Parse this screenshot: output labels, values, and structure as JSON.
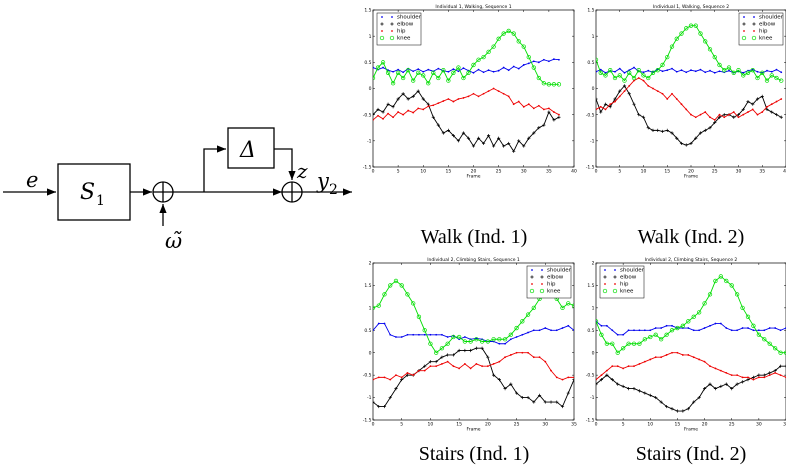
{
  "diagram": {
    "input_label": "e",
    "block1_label": "S",
    "block1_sub": "1",
    "block2_label": "Δ",
    "noise_label": "ω̃",
    "z_label": "z",
    "output_label": "y",
    "output_sub": "2"
  },
  "captions": [
    "Walk (Ind. 1)",
    "Walk (Ind. 2)",
    "Stairs (Ind. 1)",
    "Stairs (Ind. 2)"
  ],
  "colors": {
    "shoulder": "#0000ee",
    "elbow": "#000000",
    "hip": "#ee0000",
    "knee": "#00dd00"
  },
  "chart_data": [
    {
      "type": "line",
      "title": "Individual 1, Walking, Sequence 1",
      "xlabel": "Frame",
      "ylabel": "",
      "xlim": [
        0,
        40
      ],
      "ylim": [
        -1.5,
        1.5
      ],
      "xticks": [
        0,
        5,
        10,
        15,
        20,
        25,
        30,
        35,
        40
      ],
      "yticks": [
        -1.5,
        -1,
        -0.5,
        0,
        0.5,
        1,
        1.5
      ],
      "legend": "top-left",
      "x": [
        0,
        1,
        2,
        3,
        4,
        5,
        6,
        7,
        8,
        9,
        10,
        11,
        12,
        13,
        14,
        15,
        16,
        17,
        18,
        19,
        20,
        21,
        22,
        23,
        24,
        25,
        26,
        27,
        28,
        29,
        30,
        31,
        32,
        33,
        34,
        35,
        36,
        37
      ],
      "series": [
        {
          "name": "shoulder",
          "values": [
            0.4,
            0.36,
            0.4,
            0.35,
            0.32,
            0.36,
            0.31,
            0.38,
            0.33,
            0.37,
            0.32,
            0.36,
            0.33,
            0.38,
            0.34,
            0.32,
            0.37,
            0.33,
            0.39,
            0.34,
            0.3,
            0.36,
            0.31,
            0.35,
            0.32,
            0.34,
            0.4,
            0.35,
            0.42,
            0.38,
            0.45,
            0.48,
            0.52,
            0.5,
            0.55,
            0.52,
            0.56,
            0.55
          ]
        },
        {
          "name": "elbow",
          "values": [
            -0.5,
            -0.4,
            -0.45,
            -0.3,
            -0.35,
            -0.2,
            -0.1,
            -0.2,
            -0.15,
            -0.05,
            -0.2,
            -0.3,
            -0.55,
            -0.7,
            -0.85,
            -0.8,
            -0.9,
            -1.0,
            -0.85,
            -0.95,
            -1.1,
            -0.95,
            -1.05,
            -0.9,
            -1.1,
            -0.95,
            -1.1,
            -1.05,
            -1.2,
            -1.0,
            -1.1,
            -0.95,
            -0.85,
            -0.75,
            -0.7,
            -0.45,
            -0.6,
            -0.55
          ]
        },
        {
          "name": "hip",
          "values": [
            -0.6,
            -0.52,
            -0.58,
            -0.48,
            -0.55,
            -0.45,
            -0.5,
            -0.42,
            -0.46,
            -0.38,
            -0.4,
            -0.34,
            -0.32,
            -0.28,
            -0.24,
            -0.2,
            -0.25,
            -0.2,
            -0.18,
            -0.15,
            -0.1,
            -0.15,
            -0.1,
            -0.05,
            0.0,
            -0.05,
            -0.1,
            -0.15,
            -0.3,
            -0.25,
            -0.35,
            -0.3,
            -0.38,
            -0.33,
            -0.4,
            -0.38,
            -0.45,
            -0.5
          ]
        },
        {
          "name": "knee",
          "values": [
            0.2,
            0.4,
            0.5,
            0.3,
            0.1,
            0.3,
            0.2,
            0.35,
            0.15,
            0.3,
            0.25,
            0.1,
            0.3,
            0.2,
            0.35,
            0.15,
            0.3,
            0.4,
            0.2,
            0.3,
            0.45,
            0.55,
            0.6,
            0.7,
            0.8,
            0.95,
            1.05,
            1.1,
            1.05,
            0.9,
            0.8,
            0.6,
            0.4,
            0.2,
            0.1,
            0.08,
            0.08,
            0.08
          ]
        }
      ]
    },
    {
      "type": "line",
      "title": "Individual 1, Walking, Sequence 2",
      "xlabel": "Frame",
      "ylabel": "",
      "xlim": [
        0,
        40
      ],
      "ylim": [
        -1.5,
        1.5
      ],
      "xticks": [
        0,
        5,
        10,
        15,
        20,
        25,
        30,
        35,
        40
      ],
      "yticks": [
        -1.5,
        -1,
        -0.5,
        0,
        0.5,
        1,
        1.5
      ],
      "legend": "top-right",
      "x": [
        0,
        1,
        2,
        3,
        4,
        5,
        6,
        7,
        8,
        9,
        10,
        11,
        12,
        13,
        14,
        15,
        16,
        17,
        18,
        19,
        20,
        21,
        22,
        23,
        24,
        25,
        26,
        27,
        28,
        29,
        30,
        31,
        32,
        33,
        34,
        35,
        36,
        37,
        38,
        39
      ],
      "series": [
        {
          "name": "shoulder",
          "values": [
            0.32,
            0.36,
            0.3,
            0.34,
            0.32,
            0.38,
            0.3,
            0.35,
            0.4,
            0.33,
            0.31,
            0.34,
            0.31,
            0.37,
            0.33,
            0.35,
            0.38,
            0.32,
            0.35,
            0.31,
            0.35,
            0.33,
            0.36,
            0.31,
            0.34,
            0.3,
            0.33,
            0.31,
            0.34,
            0.3,
            0.33,
            0.3,
            0.34,
            0.36,
            0.32,
            0.3,
            0.34,
            0.32,
            0.36,
            0.31
          ]
        },
        {
          "name": "elbow",
          "values": [
            -0.2,
            -0.45,
            -0.3,
            -0.35,
            -0.2,
            -0.05,
            0.05,
            -0.1,
            -0.3,
            -0.5,
            -0.55,
            -0.75,
            -0.8,
            -0.8,
            -0.82,
            -0.8,
            -0.85,
            -0.95,
            -1.05,
            -1.08,
            -1.05,
            -0.95,
            -0.85,
            -0.8,
            -0.75,
            -0.65,
            -0.55,
            -0.5,
            -0.5,
            -0.55,
            -0.5,
            -0.4,
            -0.25,
            -0.3,
            -0.2,
            -0.15,
            -0.4,
            -0.45,
            -0.5,
            -0.55
          ]
        },
        {
          "name": "hip",
          "values": [
            -0.4,
            -0.35,
            -0.4,
            -0.3,
            -0.25,
            -0.15,
            -0.05,
            0.05,
            0.15,
            0.2,
            0.15,
            0.05,
            0.0,
            -0.05,
            -0.1,
            -0.2,
            -0.1,
            -0.2,
            -0.3,
            -0.4,
            -0.5,
            -0.55,
            -0.5,
            -0.45,
            -0.55,
            -0.6,
            -0.5,
            -0.55,
            -0.5,
            -0.45,
            -0.55,
            -0.5,
            -0.45,
            -0.4,
            -0.5,
            -0.45,
            -0.35,
            -0.3,
            -0.25,
            -0.2
          ]
        },
        {
          "name": "knee",
          "values": [
            0.55,
            0.3,
            0.25,
            0.35,
            0.2,
            0.25,
            0.15,
            0.3,
            0.2,
            0.35,
            0.25,
            0.2,
            0.3,
            0.35,
            0.45,
            0.6,
            0.8,
            0.95,
            1.05,
            1.15,
            1.2,
            1.2,
            1.05,
            0.9,
            0.75,
            0.6,
            0.45,
            0.35,
            0.4,
            0.3,
            0.35,
            0.25,
            0.3,
            0.35,
            0.2,
            0.3,
            0.15,
            0.25,
            0.2,
            0.15
          ]
        }
      ]
    },
    {
      "type": "line",
      "title": "Individual 2, Climbing Stairs, Sequence 1",
      "xlabel": "Frame",
      "ylabel": "",
      "xlim": [
        0,
        35
      ],
      "ylim": [
        -1.5,
        2
      ],
      "xticks": [
        0,
        5,
        10,
        15,
        20,
        25,
        30,
        35
      ],
      "yticks": [
        -1.5,
        -1,
        -0.5,
        0,
        0.5,
        1,
        1.5,
        2
      ],
      "legend": "top-right",
      "x": [
        0,
        1,
        2,
        3,
        4,
        5,
        6,
        7,
        8,
        9,
        10,
        11,
        12,
        13,
        14,
        15,
        16,
        17,
        18,
        19,
        20,
        21,
        22,
        23,
        24,
        25,
        26,
        27,
        28,
        29,
        30,
        31,
        32,
        33,
        34,
        35
      ],
      "series": [
        {
          "name": "shoulder",
          "values": [
            0.5,
            0.65,
            0.65,
            0.4,
            0.35,
            0.35,
            0.4,
            0.4,
            0.4,
            0.4,
            0.4,
            0.4,
            0.4,
            0.35,
            0.38,
            0.3,
            0.35,
            0.3,
            0.32,
            0.3,
            0.25,
            0.25,
            0.2,
            0.2,
            0.3,
            0.35,
            0.4,
            0.45,
            0.5,
            0.5,
            0.55,
            0.5,
            0.5,
            0.55,
            0.6,
            0.5
          ]
        },
        {
          "name": "elbow",
          "values": [
            -1.1,
            -1.2,
            -1.2,
            -1.0,
            -0.8,
            -0.6,
            -0.5,
            -0.5,
            -0.4,
            -0.3,
            -0.2,
            -0.2,
            -0.1,
            -0.05,
            -0.05,
            0.05,
            0.05,
            0.05,
            0.1,
            0.1,
            -0.1,
            -0.5,
            -0.6,
            -0.8,
            -0.7,
            -0.9,
            -1.0,
            -1.0,
            -1.1,
            -0.95,
            -1.1,
            -1.1,
            -1.1,
            -1.2,
            -0.9,
            -0.6
          ]
        },
        {
          "name": "hip",
          "values": [
            -0.6,
            -0.55,
            -0.55,
            -0.6,
            -0.5,
            -0.55,
            -0.45,
            -0.5,
            -0.4,
            -0.4,
            -0.3,
            -0.3,
            -0.25,
            -0.2,
            -0.3,
            -0.35,
            -0.25,
            -0.35,
            -0.25,
            -0.3,
            -0.3,
            -0.25,
            -0.2,
            -0.1,
            -0.05,
            0.0,
            0.0,
            0.0,
            -0.1,
            -0.1,
            -0.2,
            -0.4,
            -0.55,
            -0.6,
            -0.55,
            -0.55
          ]
        },
        {
          "name": "knee",
          "values": [
            1.0,
            1.05,
            1.3,
            1.5,
            1.6,
            1.5,
            1.3,
            1.1,
            0.8,
            0.5,
            0.2,
            0.0,
            0.1,
            0.2,
            0.35,
            0.35,
            0.25,
            0.25,
            0.3,
            0.25,
            0.25,
            0.3,
            0.3,
            0.3,
            0.4,
            0.55,
            0.7,
            0.85,
            1.0,
            1.2,
            1.3,
            1.4,
            1.2,
            1.0,
            1.1,
            1.05
          ]
        }
      ]
    },
    {
      "type": "line",
      "title": "Individual 2, Climbing Stairs, Sequence 2",
      "xlabel": "Frame",
      "ylabel": "",
      "xlim": [
        0,
        35
      ],
      "ylim": [
        -1.5,
        2
      ],
      "xticks": [
        0,
        5,
        10,
        15,
        20,
        25,
        30,
        35
      ],
      "yticks": [
        -1.5,
        -1,
        -0.5,
        0,
        0.5,
        1,
        1.5,
        2
      ],
      "legend": "top-left",
      "x": [
        0,
        1,
        2,
        3,
        4,
        5,
        6,
        7,
        8,
        9,
        10,
        11,
        12,
        13,
        14,
        15,
        16,
        17,
        18,
        19,
        20,
        21,
        22,
        23,
        24,
        25,
        26,
        27,
        28,
        29,
        30,
        31,
        32,
        33,
        34,
        35
      ],
      "series": [
        {
          "name": "shoulder",
          "values": [
            0.7,
            0.6,
            0.6,
            0.5,
            0.4,
            0.4,
            0.5,
            0.5,
            0.5,
            0.5,
            0.5,
            0.55,
            0.55,
            0.6,
            0.6,
            0.55,
            0.55,
            0.55,
            0.5,
            0.5,
            0.55,
            0.6,
            0.65,
            0.65,
            0.55,
            0.5,
            0.5,
            0.55,
            0.55,
            0.5,
            0.5,
            0.5,
            0.55,
            0.55,
            0.5,
            0.55
          ]
        },
        {
          "name": "elbow",
          "values": [
            -0.7,
            -0.6,
            -0.5,
            -0.6,
            -0.7,
            -0.75,
            -0.8,
            -0.8,
            -0.85,
            -0.9,
            -0.95,
            -1.0,
            -1.1,
            -1.2,
            -1.25,
            -1.3,
            -1.3,
            -1.25,
            -1.1,
            -1.0,
            -0.8,
            -0.7,
            -0.8,
            -0.75,
            -0.7,
            -0.8,
            -0.7,
            -0.65,
            -0.6,
            -0.55,
            -0.5,
            -0.5,
            -0.45,
            -0.4,
            -0.3,
            -0.3
          ]
        },
        {
          "name": "hip",
          "values": [
            -0.6,
            -0.5,
            -0.4,
            -0.3,
            -0.3,
            -0.35,
            -0.3,
            -0.3,
            -0.25,
            -0.2,
            -0.15,
            -0.1,
            -0.1,
            -0.05,
            0.0,
            0.0,
            -0.05,
            -0.05,
            -0.1,
            -0.15,
            -0.2,
            -0.3,
            -0.35,
            -0.4,
            -0.45,
            -0.5,
            -0.5,
            -0.55,
            -0.55,
            -0.6,
            -0.55,
            -0.55,
            -0.5,
            -0.45,
            -0.5,
            -0.55
          ]
        },
        {
          "name": "knee",
          "values": [
            0.7,
            0.4,
            0.2,
            0.2,
            0.0,
            0.1,
            0.2,
            0.2,
            0.2,
            0.3,
            0.35,
            0.4,
            0.3,
            0.4,
            0.5,
            0.55,
            0.6,
            0.7,
            0.8,
            0.9,
            1.1,
            1.3,
            1.6,
            1.7,
            1.6,
            1.5,
            1.3,
            1.0,
            0.8,
            0.6,
            0.4,
            0.3,
            0.2,
            0.1,
            0.0,
            0.0
          ]
        }
      ]
    }
  ]
}
